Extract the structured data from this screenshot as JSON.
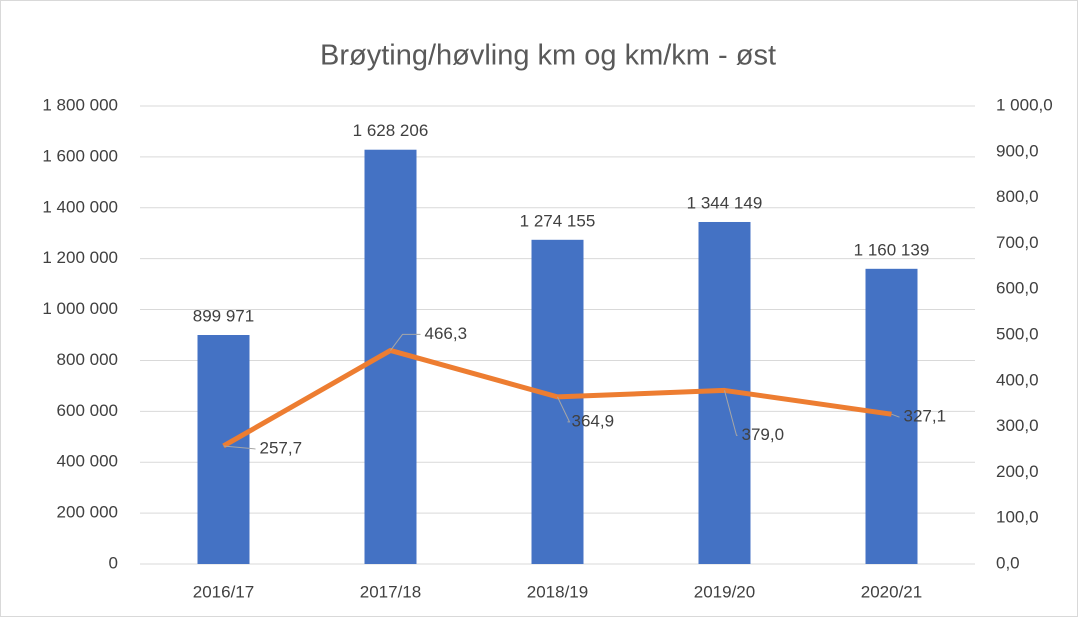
{
  "chart_data": {
    "type": "bar",
    "title": "Brøyting/høvling km og km/km - øst",
    "categories": [
      "2016/17",
      "2017/18",
      "2018/19",
      "2019/20",
      "2020/21"
    ],
    "series": [
      {
        "type": "bar",
        "color": "#4472c4",
        "axis": "y",
        "values": [
          899971,
          1628206,
          1274155,
          1344149,
          1160139
        ],
        "value_labels": [
          "899 971",
          "1 628 206",
          "1 274 155",
          "1 344 149",
          "1 160 139"
        ]
      },
      {
        "type": "line",
        "color": "#ed7d31",
        "axis": "y2",
        "values": [
          257.7,
          466.3,
          364.9,
          379.0,
          327.1
        ],
        "value_labels": [
          "257,7",
          "466,3",
          "364,9",
          "379,0",
          "327,1"
        ]
      }
    ],
    "ylim": [
      0,
      1800000
    ],
    "yticks": [
      0,
      {
        "value": 200000,
        "label": "200 000"
      },
      {
        "value": 400000,
        "label": "400 000"
      },
      {
        "value": 600000,
        "label": "600 000"
      },
      {
        "value": 800000,
        "label": "800 000"
      },
      {
        "value": 1000000,
        "label": "1 000 000"
      },
      {
        "value": 1200000,
        "label": "1 200 000"
      },
      {
        "value": 1400000,
        "label": "1 400 000"
      },
      {
        "value": 1600000,
        "label": "1 600 000"
      },
      {
        "value": 1800000,
        "label": "1 800 000"
      }
    ],
    "y2lim": [
      0,
      1000
    ],
    "y2ticks": [
      {
        "value": 0,
        "label": "0,0"
      },
      {
        "value": 100,
        "label": "100,0"
      },
      {
        "value": 200,
        "label": "200,0"
      },
      {
        "value": 300,
        "label": "300,0"
      },
      {
        "value": 400,
        "label": "400,0"
      },
      {
        "value": 500,
        "label": "500,0"
      },
      {
        "value": 600,
        "label": "600,0"
      },
      {
        "value": 700,
        "label": "700,0"
      },
      {
        "value": 800,
        "label": "800,0"
      },
      {
        "value": 900,
        "label": "900,0"
      },
      {
        "value": 1000,
        "label": "1 000,0"
      }
    ],
    "grid": true
  }
}
